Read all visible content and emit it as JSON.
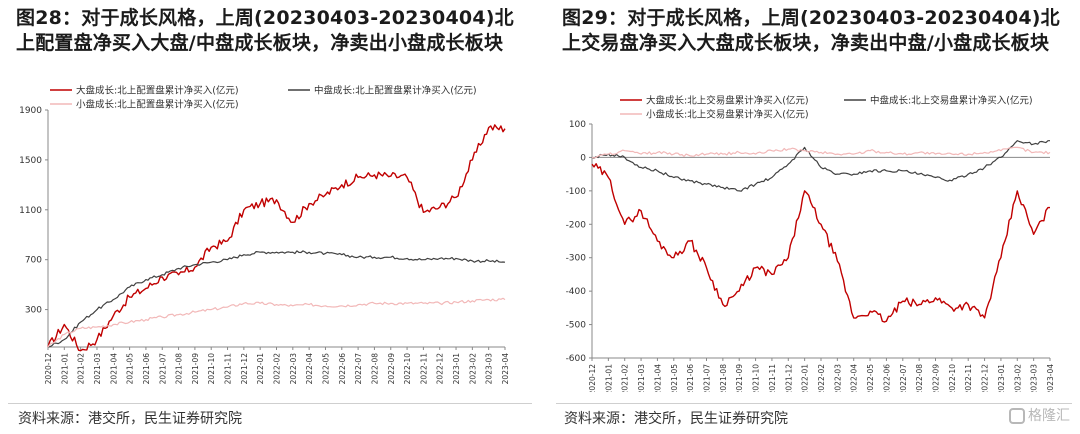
{
  "left": {
    "title": "图28：对于成长风格，上周(20230403-20230404)北上配置盘净买入大盘/中盘成长板块，净卖出小盘成长板块",
    "source": "资料来源：港交所，民生证券研究院"
  },
  "right": {
    "title": "图29：对于成长风格，上周(20230403-20230404)北上交易盘净买入大盘成长板块，净卖出中盘/小盘成长板块",
    "source": "资料来源：港交所，民生证券研究院"
  },
  "watermark": "格隆汇",
  "colors": {
    "large": "#c00000",
    "mid": "#404040",
    "small": "#f2b8b8"
  },
  "chart_data": [
    {
      "type": "line",
      "x": [
        "2020-12",
        "2021-01",
        "2021-02",
        "2021-03",
        "2021-04",
        "2021-05",
        "2021-06",
        "2021-07",
        "2021-08",
        "2021-09",
        "2021-10",
        "2021-11",
        "2021-12",
        "2022-01",
        "2022-02",
        "2022-03",
        "2022-04",
        "2022-05",
        "2022-06",
        "2022-07",
        "2022-08",
        "2022-09",
        "2022-10",
        "2022-11",
        "2022-12",
        "2023-01",
        "2023-02",
        "2023-03",
        "2023-04"
      ],
      "ylim": [
        0,
        1900
      ],
      "yticks": [
        300,
        700,
        1100,
        1500,
        1900
      ],
      "legend_position": "top-left",
      "grid": false,
      "series": [
        {
          "name": "大盘成长:北上配置盘累计净买入(亿元)",
          "color_key": "large",
          "values": [
            0,
            180,
            -30,
            60,
            250,
            400,
            470,
            560,
            580,
            640,
            800,
            850,
            1100,
            1150,
            1180,
            1000,
            1150,
            1220,
            1300,
            1360,
            1380,
            1370,
            1360,
            1080,
            1120,
            1200,
            1500,
            1760,
            1750
          ]
        },
        {
          "name": "中盘成长:北上配置盘累计净买入(亿元)",
          "color_key": "mid",
          "values": [
            0,
            60,
            200,
            300,
            380,
            480,
            540,
            580,
            630,
            660,
            680,
            700,
            740,
            760,
            760,
            760,
            760,
            750,
            740,
            720,
            720,
            720,
            710,
            700,
            710,
            710,
            690,
            690,
            680
          ]
        },
        {
          "name": "小盘成长:北上配置盘累计净买入(亿元)",
          "color_key": "small",
          "values": [
            0,
            100,
            150,
            160,
            180,
            200,
            220,
            240,
            260,
            280,
            300,
            320,
            350,
            350,
            340,
            330,
            340,
            330,
            330,
            340,
            350,
            350,
            350,
            350,
            350,
            360,
            370,
            380,
            380
          ]
        }
      ]
    },
    {
      "type": "line",
      "x": [
        "2020-12",
        "2021-01",
        "2021-02",
        "2021-03",
        "2021-04",
        "2021-05",
        "2021-06",
        "2021-07",
        "2021-08",
        "2021-09",
        "2021-10",
        "2021-11",
        "2021-12",
        "2022-01",
        "2022-02",
        "2022-03",
        "2022-04",
        "2022-05",
        "2022-06",
        "2022-07",
        "2022-08",
        "2022-09",
        "2022-10",
        "2022-11",
        "2022-12",
        "2023-01",
        "2023-02",
        "2023-03",
        "2023-04"
      ],
      "ylim": [
        -600,
        100
      ],
      "yticks": [
        -600,
        -500,
        -400,
        -300,
        -200,
        -100,
        0,
        100
      ],
      "legend_position": "top",
      "grid": false,
      "series": [
        {
          "name": "大盘成长:北上交易盘累计净买入(亿元)",
          "color_key": "large",
          "values": [
            -20,
            -60,
            -200,
            -160,
            -250,
            -300,
            -250,
            -330,
            -440,
            -400,
            -330,
            -350,
            -300,
            -100,
            -200,
            -310,
            -480,
            -460,
            -490,
            -430,
            -440,
            -420,
            -450,
            -440,
            -480,
            -300,
            -100,
            -230,
            -150
          ]
        },
        {
          "name": "中盘成长:北上交易盘累计净买入(亿元)",
          "color_key": "mid",
          "values": [
            0,
            10,
            0,
            -30,
            -40,
            -60,
            -70,
            -80,
            -90,
            -100,
            -80,
            -60,
            -20,
            30,
            -30,
            -50,
            -50,
            -40,
            -40,
            -40,
            -50,
            -60,
            -70,
            -50,
            -30,
            0,
            50,
            40,
            50
          ]
        },
        {
          "name": "小盘成长:北上交易盘累计净买入(亿元)",
          "color_key": "small",
          "values": [
            0,
            10,
            20,
            10,
            15,
            10,
            5,
            10,
            10,
            15,
            10,
            20,
            25,
            20,
            15,
            10,
            10,
            20,
            15,
            10,
            15,
            10,
            10,
            10,
            15,
            20,
            30,
            15,
            15
          ]
        }
      ]
    }
  ]
}
